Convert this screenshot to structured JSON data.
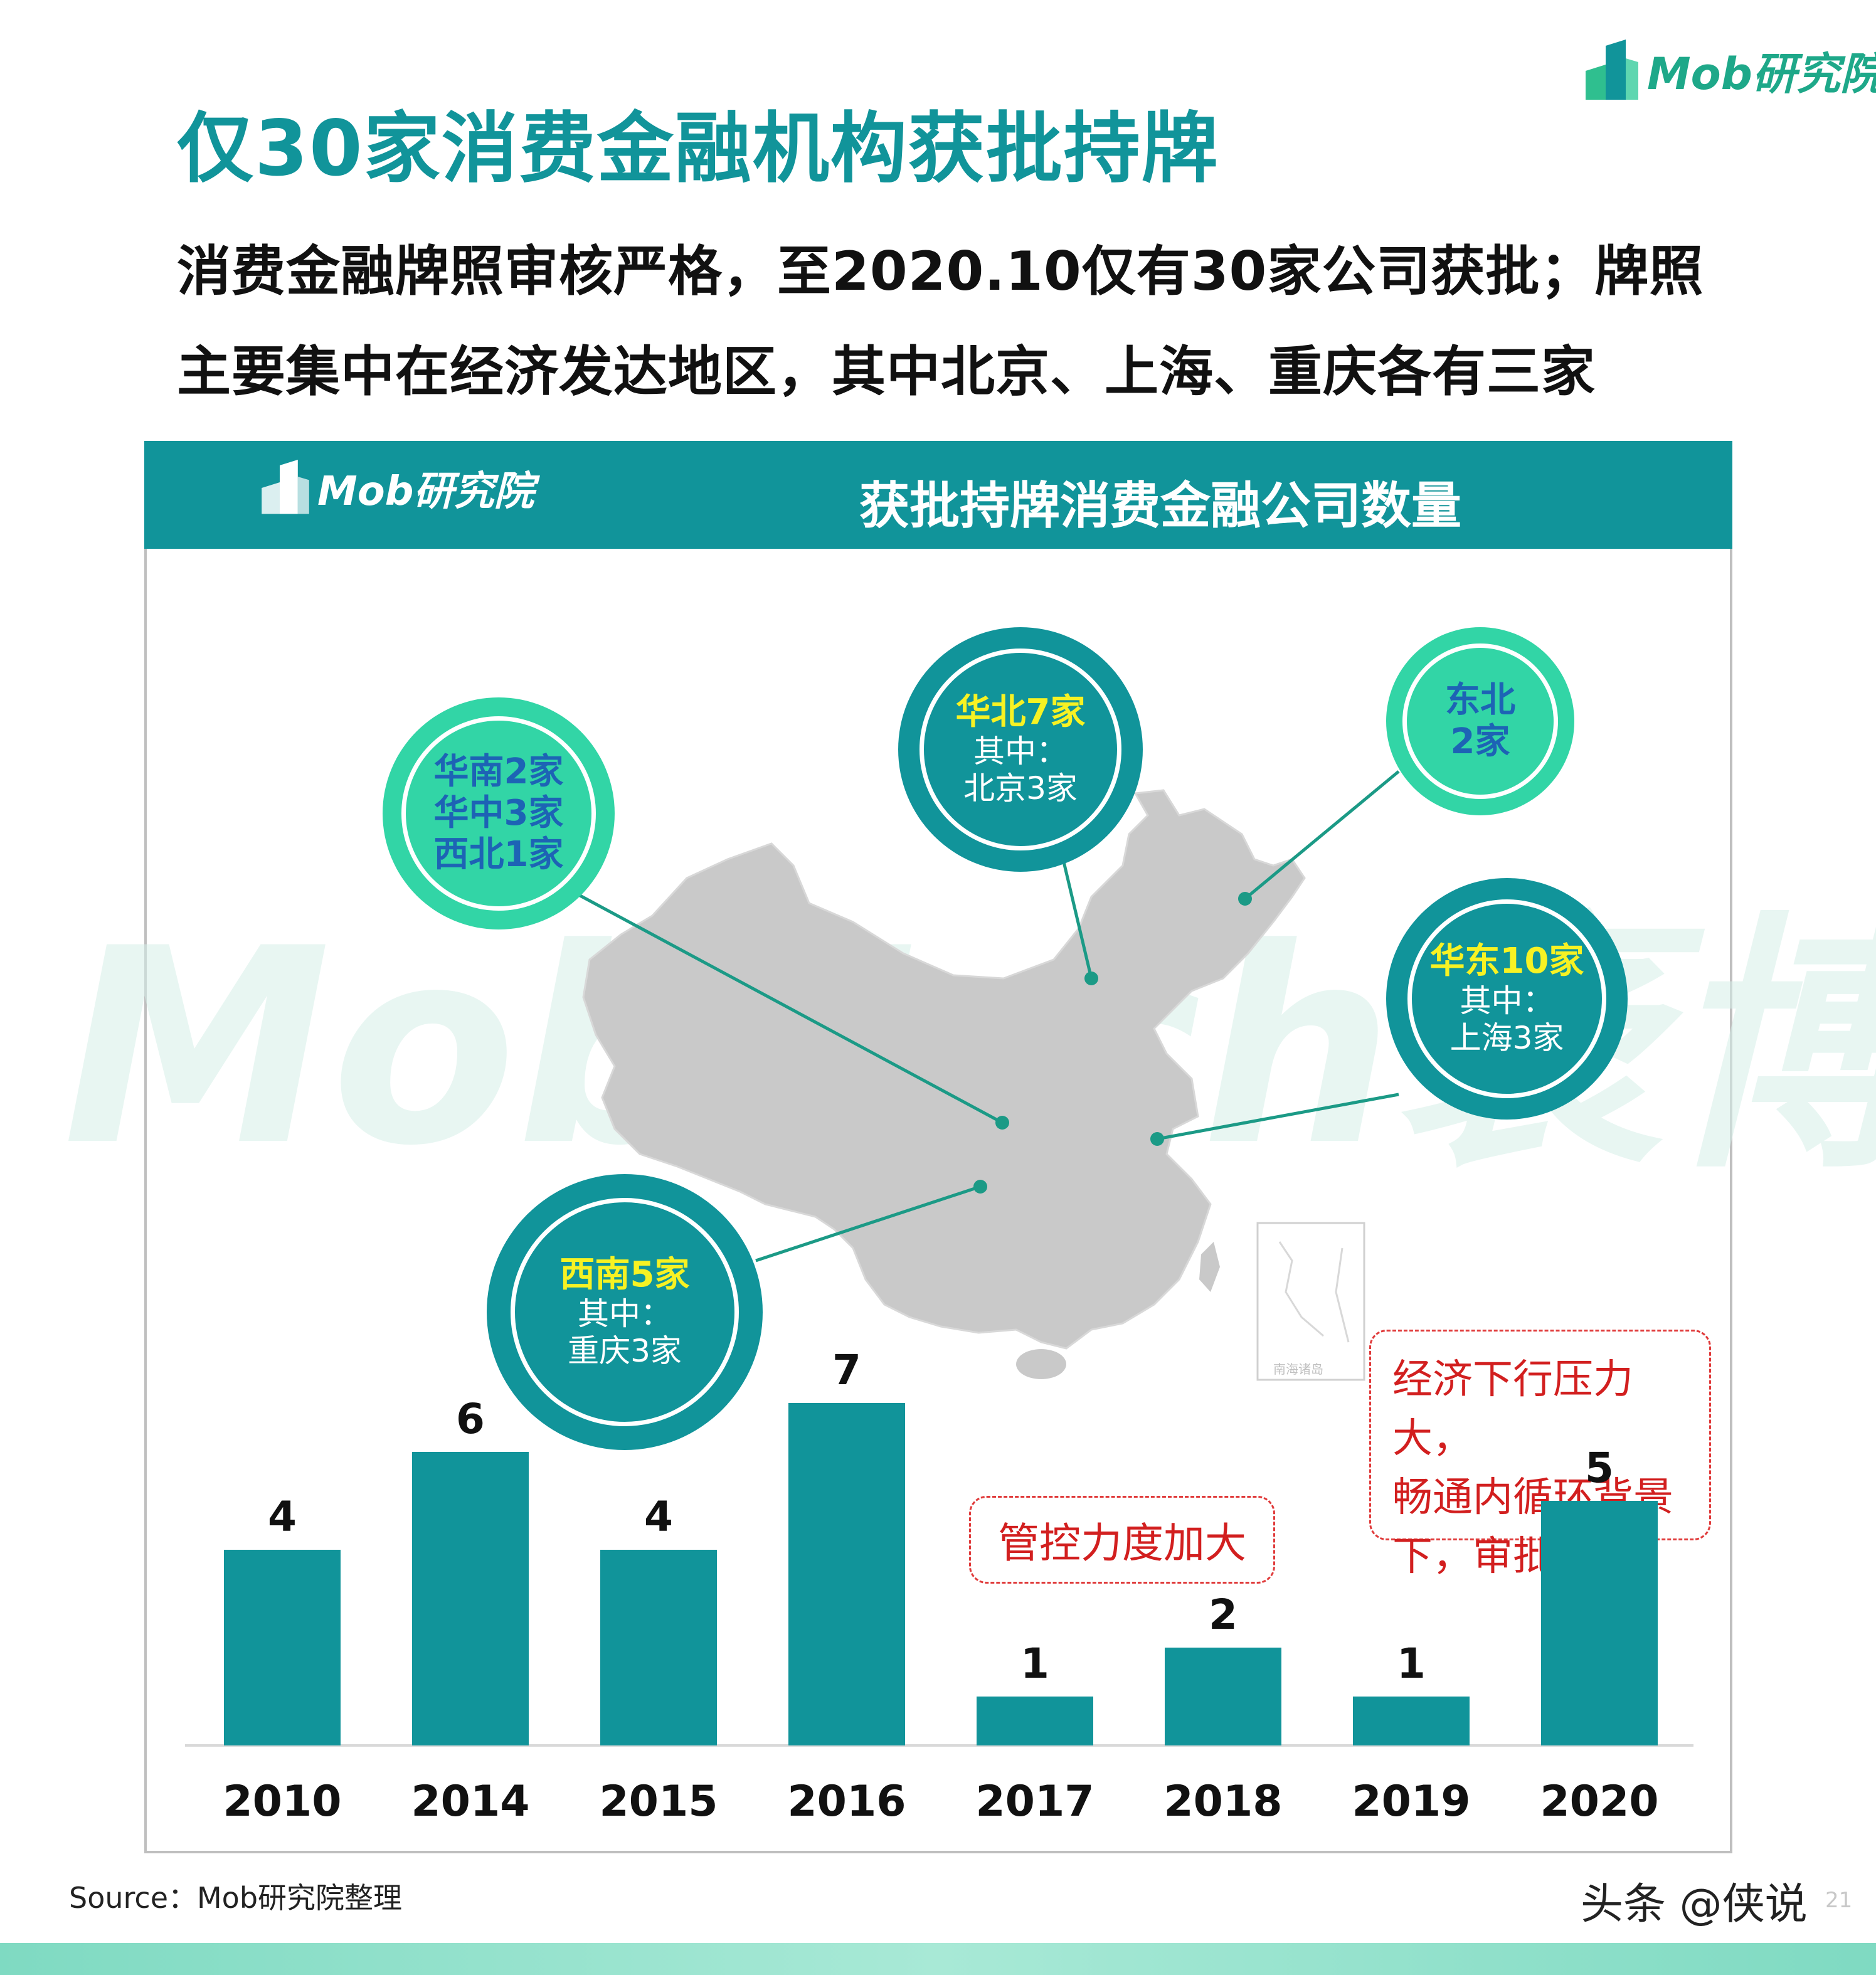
{
  "brand": {
    "logo_text": "Mob研究院",
    "watermark_text": "MobTech袤博"
  },
  "title": "仅30家消费金融机构获批持牌",
  "subtitle_lines": [
    "消费金融牌照审核严格，至2020.10仅有30家公司获批；牌照",
    "主要集中在经济发达地区，其中北京、上海、重庆各有三家"
  ],
  "panel": {
    "title": "获批持牌消费金融公司数量"
  },
  "regions": {
    "south_central_northwest": {
      "lines": [
        "华南2家",
        "华中3家",
        "西北1家"
      ]
    },
    "north": {
      "headline": "华北7家",
      "lines": [
        "其中：",
        "北京3家"
      ]
    },
    "northeast": {
      "lines": [
        "东北",
        "2家"
      ]
    },
    "east": {
      "headline": "华东10家",
      "lines": [
        "其中：",
        "上海3家"
      ]
    },
    "southwest": {
      "headline": "西南5家",
      "lines": [
        "其中：",
        "重庆3家"
      ]
    }
  },
  "map": {
    "inset_label": "南海诸岛"
  },
  "notes": {
    "control": "管控力度加大",
    "economy_lines": [
      "经济下行压力大，",
      "畅通内循环背景",
      "下，审批加速"
    ]
  },
  "colors": {
    "teal": "#11949a",
    "mint": "#32d5a6",
    "map_gray": "#c9c9c9",
    "note_red": "#d21f1f"
  },
  "chart_data": {
    "type": "bar",
    "categories": [
      "2010",
      "2014",
      "2015",
      "2016",
      "2017",
      "2018",
      "2019",
      "2020"
    ],
    "values": [
      4,
      6,
      4,
      7,
      1,
      2,
      1,
      5
    ],
    "title": "获批持牌消费金融公司数量",
    "xlabel": "",
    "ylabel": "",
    "ylim": [
      0,
      7
    ],
    "grid": false,
    "data_labels": true
  },
  "footer": {
    "source": "Source：Mob研究院整理",
    "mark": "头条 @侠说",
    "page": "21"
  }
}
